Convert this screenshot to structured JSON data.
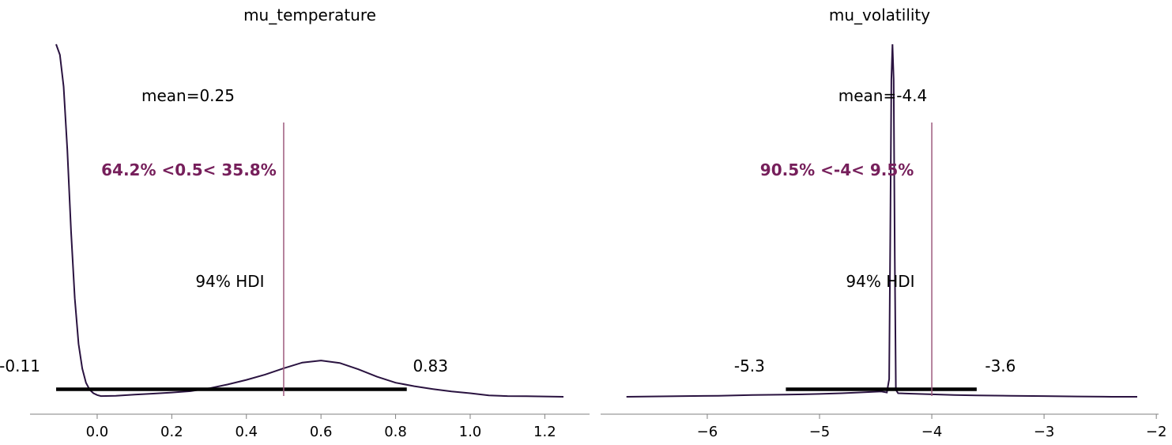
{
  "chart_data": [
    {
      "type": "area",
      "title": "mu_temperature",
      "xlim": [
        -0.18,
        1.32
      ],
      "x_ticks": [
        0.0,
        0.2,
        0.4,
        0.6,
        0.8,
        1.0,
        1.2
      ],
      "x_tick_labels": [
        "0.0",
        "0.2",
        "0.4",
        "0.6",
        "0.8",
        "1.0",
        "1.2"
      ],
      "mean_label": "mean=0.25",
      "hdi_label": "94% HDI",
      "hdi": [
        -0.11,
        0.83
      ],
      "hdi_low_label": "-0.11",
      "hdi_high_label": "0.83",
      "ref_value": 0.5,
      "ref_label": "64.2% <0.5< 35.8%",
      "density": {
        "x": [
          -0.11,
          -0.1,
          -0.09,
          -0.08,
          -0.07,
          -0.06,
          -0.05,
          -0.04,
          -0.03,
          -0.02,
          -0.01,
          0.0,
          0.01,
          0.05,
          0.1,
          0.15,
          0.2,
          0.25,
          0.3,
          0.35,
          0.4,
          0.45,
          0.5,
          0.55,
          0.6,
          0.65,
          0.7,
          0.75,
          0.8,
          0.85,
          0.9,
          0.95,
          1.0,
          1.05,
          1.1,
          1.15,
          1.2,
          1.25
        ],
        "y": [
          1.0,
          0.97,
          0.88,
          0.7,
          0.47,
          0.28,
          0.15,
          0.08,
          0.04,
          0.02,
          0.01,
          0.005,
          0.002,
          0.003,
          0.006,
          0.009,
          0.012,
          0.016,
          0.024,
          0.035,
          0.048,
          0.063,
          0.081,
          0.097,
          0.103,
          0.096,
          0.078,
          0.057,
          0.04,
          0.03,
          0.022,
          0.015,
          0.01,
          0.004,
          0.002,
          0.0015,
          0.001,
          0.0
        ]
      }
    },
    {
      "type": "area",
      "title": "mu_volatility",
      "xlim": [
        -6.95,
        -1.98
      ],
      "x_ticks": [
        -6,
        -5,
        -4,
        -3,
        -2
      ],
      "x_tick_labels": [
        "−6",
        "−5",
        "−4",
        "−3",
        "−2"
      ],
      "mean_label": "mean=-4.4",
      "hdi_label": "94% HDI",
      "hdi": [
        -5.3,
        -3.6
      ],
      "hdi_low_label": "-5.3",
      "hdi_high_label": "-3.6",
      "ref_value": -4.0,
      "ref_label": "90.5% <-4< 9.5%",
      "density": {
        "x": [
          -6.72,
          -6.5,
          -6.2,
          -5.9,
          -5.6,
          -5.3,
          -5.0,
          -4.8,
          -4.6,
          -4.45,
          -4.4,
          -4.38,
          -4.37,
          -4.36,
          -4.35,
          -4.34,
          -4.33,
          -4.32,
          -4.3,
          -4.2,
          -4.0,
          -3.8,
          -3.6,
          -3.3,
          -3.0,
          -2.7,
          -2.4,
          -2.17
        ],
        "y": [
          0.0,
          0.001,
          0.002,
          0.003,
          0.005,
          0.006,
          0.008,
          0.01,
          0.013,
          0.015,
          0.012,
          0.05,
          0.45,
          0.9,
          1.0,
          0.9,
          0.4,
          0.02,
          0.01,
          0.009,
          0.007,
          0.005,
          0.004,
          0.003,
          0.002,
          0.001,
          0.0,
          0.0
        ]
      }
    }
  ]
}
